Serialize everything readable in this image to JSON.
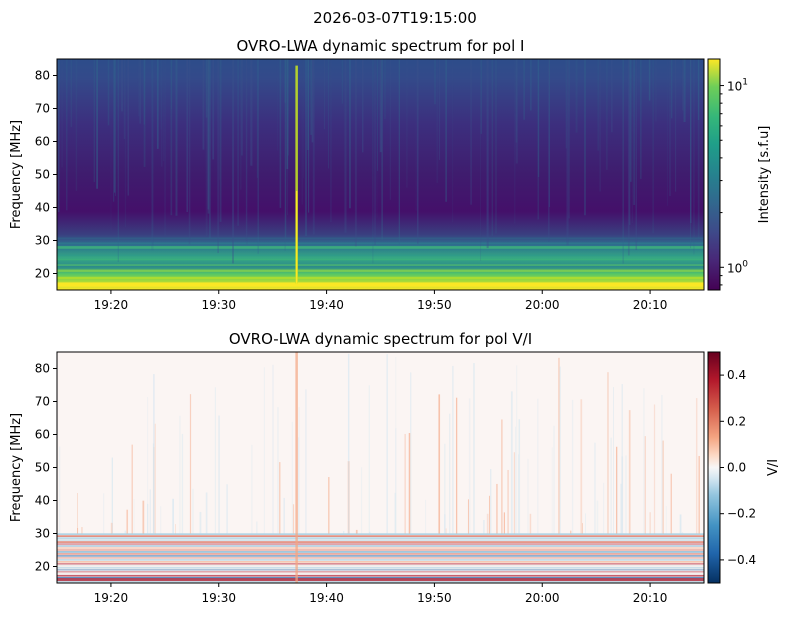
{
  "figure": {
    "suptitle": "2026-03-07T19:15:00"
  },
  "chart_data": [
    {
      "type": "heatmap",
      "title": "OVRO-LWA dynamic spectrum for pol I",
      "xlabel": "",
      "ylabel": "Frequency [MHz]",
      "x_ticks": [
        "19:20",
        "19:30",
        "19:40",
        "19:50",
        "20:00",
        "20:10"
      ],
      "x_tick_minutes_after_1915": [
        5,
        15,
        25,
        35,
        45,
        55
      ],
      "xlim_minutes_after_1915": [
        0,
        60
      ],
      "y_ticks": [
        20,
        30,
        40,
        50,
        60,
        70,
        80
      ],
      "ylim": [
        15,
        85
      ],
      "colormap": "viridis",
      "color_scale": "log",
      "colorbar": {
        "label": "Intensity [s.f.u]",
        "range": [
          0.75,
          14
        ],
        "ticks": [
          {
            "base": "10",
            "exp": "0",
            "value": 1
          },
          {
            "base": "10",
            "exp": "1",
            "value": 10
          }
        ]
      },
      "features": {
        "burst_time_minutes_after_1915": 22.2,
        "bright_band_MHz": [
          15,
          29
        ],
        "quiet_background": "low intensity above ~35 MHz"
      }
    },
    {
      "type": "heatmap",
      "title": "OVRO-LWA dynamic spectrum for pol V/I",
      "xlabel": "",
      "ylabel": "Frequency [MHz]",
      "x_ticks": [
        "19:20",
        "19:30",
        "19:40",
        "19:50",
        "20:00",
        "20:10"
      ],
      "x_tick_minutes_after_1915": [
        5,
        15,
        25,
        35,
        45,
        55
      ],
      "xlim_minutes_after_1915": [
        0,
        60
      ],
      "y_ticks": [
        20,
        30,
        40,
        50,
        60,
        70,
        80
      ],
      "ylim": [
        15,
        85
      ],
      "colormap": "RdBu_r",
      "colorbar": {
        "label": "V/I",
        "range": [
          -0.5,
          0.5
        ],
        "ticks": [
          0.4,
          0.2,
          0.0,
          -0.2,
          -0.4
        ],
        "tick_labels": [
          "0.4",
          "0.2",
          "0.0",
          "−0.2",
          "−0.4"
        ]
      }
    }
  ]
}
